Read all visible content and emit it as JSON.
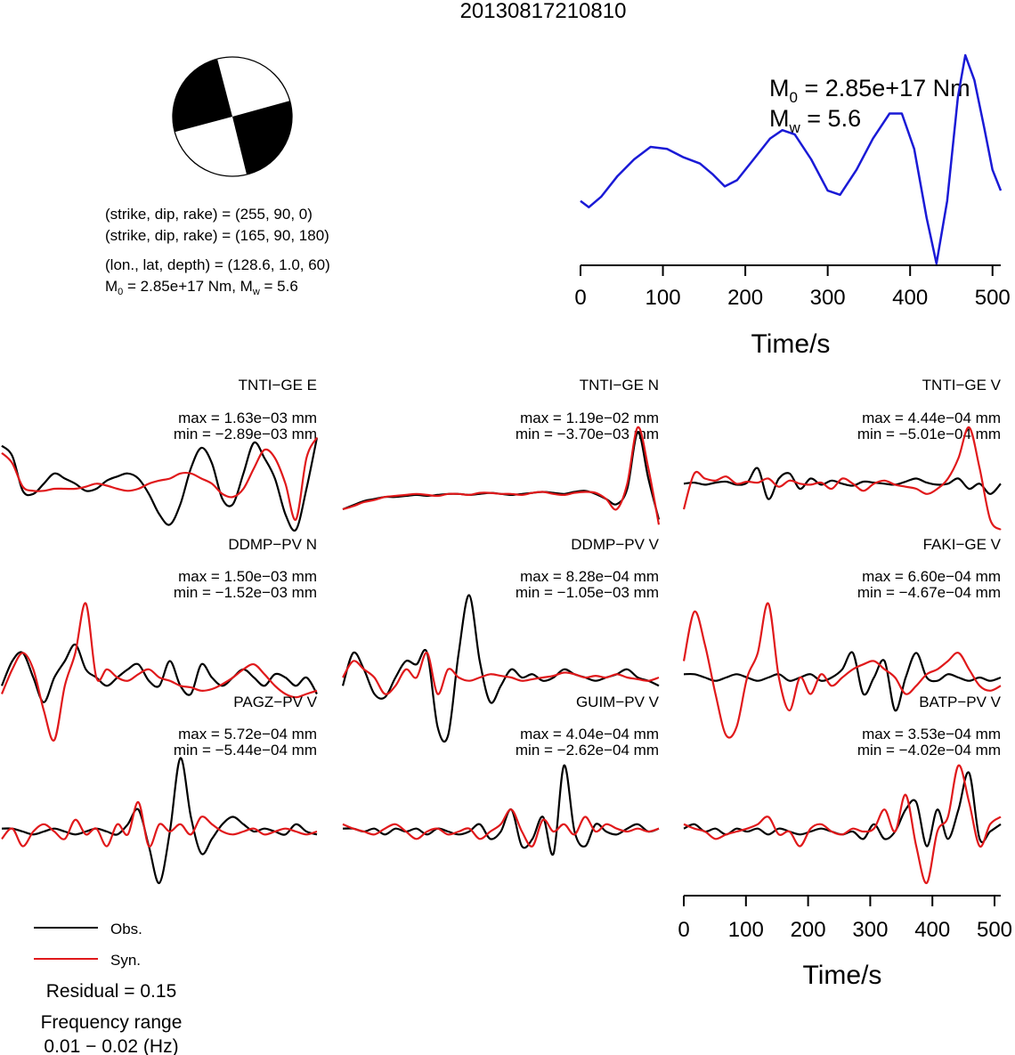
{
  "title": "20130817210810",
  "colors": {
    "observed": "#000000",
    "synthetic": "#e0191b",
    "stf": "#1a1ad6"
  },
  "beachball": {
    "info_lines": [
      "(strike, dip, rake) = (255, 90, 0)",
      "(strike, dip, rake) = (165, 90, 180)",
      "(lon., lat, depth) = (128.6, 1.0, 60)"
    ],
    "moment_line": {
      "m0_prefix": "M",
      "m0_sub": "0",
      "m0_text": " = 2.85e+17 Nm, M",
      "mw_sub": "w",
      "mw_text": " = 5.6"
    }
  },
  "stf_panel": {
    "m0": {
      "prefix": "M",
      "sub": "0",
      "text": " = 2.85e+17 Nm"
    },
    "mw": {
      "prefix": "M",
      "sub": "w",
      "text": " = 5.6"
    },
    "xlabel": "Time/s",
    "ticks": [
      "0",
      "100",
      "200",
      "300",
      "400",
      "500"
    ]
  },
  "waveform_axis": {
    "xlabel": "Time/s",
    "ticks": [
      "0",
      "100",
      "200",
      "300",
      "400",
      "500"
    ]
  },
  "legend": {
    "obs": "Obs.",
    "syn": "Syn."
  },
  "residual": "Residual = 0.15",
  "frequency_label": "Frequency range",
  "frequency_value": "0.01 − 0.02 (Hz)",
  "chart_data": [
    {
      "type": "line",
      "name": "source time function",
      "x": [
        0,
        10,
        25,
        45,
        65,
        85,
        105,
        125,
        145,
        160,
        175,
        190,
        210,
        230,
        245,
        260,
        280,
        300,
        315,
        335,
        355,
        375,
        390,
        405,
        420,
        432,
        445,
        458,
        467,
        478,
        490,
        500,
        510
      ],
      "y": [
        0.3,
        0.27,
        0.32,
        0.42,
        0.5,
        0.56,
        0.55,
        0.51,
        0.48,
        0.43,
        0.37,
        0.4,
        0.5,
        0.6,
        0.64,
        0.62,
        0.5,
        0.35,
        0.33,
        0.45,
        0.6,
        0.72,
        0.72,
        0.55,
        0.22,
        0.0,
        0.3,
        0.8,
        1.0,
        0.88,
        0.65,
        0.45,
        0.35
      ],
      "xlim": [
        0,
        510
      ]
    },
    {
      "type": "line",
      "name": "waveforms",
      "xlim": [
        0,
        510
      ],
      "stations": [
        {
          "label": "TNTI−GE E",
          "max": "max = 1.63e−03 mm",
          "min": "min = −2.89e−03 mm",
          "obs": [
            0.82,
            0.72,
            0.38,
            0.35,
            0.45,
            0.55,
            0.5,
            0.45,
            0.38,
            0.4,
            0.48,
            0.52,
            0.55,
            0.5,
            0.35,
            0.15,
            0.05,
            0.25,
            0.6,
            0.8,
            0.65,
            0.3,
            0.25,
            0.55,
            0.85,
            0.7,
            0.5,
            0.15,
            0.0,
            0.4,
            0.9
          ],
          "syn": [
            0.75,
            0.65,
            0.42,
            0.38,
            0.38,
            0.4,
            0.4,
            0.4,
            0.42,
            0.45,
            0.43,
            0.4,
            0.38,
            0.4,
            0.45,
            0.48,
            0.5,
            0.55,
            0.55,
            0.5,
            0.45,
            0.35,
            0.32,
            0.4,
            0.6,
            0.78,
            0.7,
            0.45,
            0.1,
            0.7,
            0.9
          ]
        },
        {
          "label": "TNTI−GE N",
          "max": "max = 1.19e−02 mm",
          "min": "min = −3.70e−03 mm",
          "obs": [
            0.2,
            0.24,
            0.28,
            0.3,
            0.32,
            0.32,
            0.33,
            0.34,
            0.33,
            0.34,
            0.35,
            0.35,
            0.34,
            0.35,
            0.36,
            0.35,
            0.34,
            0.35,
            0.36,
            0.37,
            0.36,
            0.35,
            0.37,
            0.38,
            0.35,
            0.3,
            0.25,
            0.4,
            0.95,
            0.5,
            0.1
          ],
          "syn": [
            0.2,
            0.23,
            0.27,
            0.29,
            0.32,
            0.33,
            0.34,
            0.35,
            0.34,
            0.33,
            0.35,
            0.35,
            0.34,
            0.36,
            0.36,
            0.35,
            0.35,
            0.34,
            0.36,
            0.37,
            0.35,
            0.34,
            0.36,
            0.37,
            0.36,
            0.3,
            0.2,
            0.45,
            1.0,
            0.6,
            0.05
          ]
        },
        {
          "label": "TNTI−GE V",
          "max": "max = 4.44e−04 mm",
          "min": "min = −5.01e−04 mm",
          "obs": [
            0.45,
            0.46,
            0.44,
            0.46,
            0.47,
            0.44,
            0.46,
            0.6,
            0.3,
            0.5,
            0.55,
            0.4,
            0.5,
            0.44,
            0.48,
            0.45,
            0.43,
            0.47,
            0.46,
            0.45,
            0.44,
            0.47,
            0.5,
            0.46,
            0.44,
            0.45,
            0.5,
            0.4,
            0.45,
            0.35,
            0.45
          ],
          "syn": [
            0.2,
            0.55,
            0.5,
            0.48,
            0.52,
            0.45,
            0.47,
            0.46,
            0.5,
            0.42,
            0.48,
            0.45,
            0.44,
            0.46,
            0.4,
            0.5,
            0.45,
            0.38,
            0.45,
            0.48,
            0.44,
            0.42,
            0.4,
            0.35,
            0.4,
            0.5,
            0.7,
            1.0,
            0.6,
            0.1,
            0.0
          ]
        },
        {
          "label": "DDMP−PV N",
          "max": "max = 1.50e−03 mm",
          "min": "min = −1.52e−03 mm",
          "obs": [
            0.35,
            0.5,
            0.55,
            0.4,
            0.25,
            0.4,
            0.5,
            0.6,
            0.45,
            0.4,
            0.35,
            0.4,
            0.45,
            0.48,
            0.38,
            0.35,
            0.5,
            0.35,
            0.3,
            0.48,
            0.4,
            0.35,
            0.4,
            0.45,
            0.4,
            0.35,
            0.42,
            0.4,
            0.35,
            0.4,
            0.3
          ],
          "syn": [
            0.3,
            0.45,
            0.55,
            0.45,
            0.2,
            0.02,
            0.35,
            0.55,
            0.85,
            0.4,
            0.45,
            0.4,
            0.38,
            0.42,
            0.45,
            0.4,
            0.38,
            0.35,
            0.34,
            0.32,
            0.33,
            0.36,
            0.4,
            0.45,
            0.48,
            0.42,
            0.35,
            0.3,
            0.28,
            0.3,
            0.32
          ]
        },
        {
          "label": "DDMP−PV V",
          "max": "max = 8.28e−04 mm",
          "min": "min = −1.05e−03 mm",
          "obs": [
            0.35,
            0.55,
            0.45,
            0.3,
            0.28,
            0.4,
            0.5,
            0.48,
            0.55,
            0.1,
            0.05,
            0.55,
            0.9,
            0.5,
            0.25,
            0.35,
            0.45,
            0.4,
            0.42,
            0.38,
            0.4,
            0.45,
            0.42,
            0.4,
            0.38,
            0.4,
            0.42,
            0.45,
            0.4,
            0.38,
            0.35
          ],
          "syn": [
            0.4,
            0.5,
            0.45,
            0.4,
            0.3,
            0.35,
            0.45,
            0.4,
            0.55,
            0.3,
            0.45,
            0.4,
            0.38,
            0.4,
            0.42,
            0.41,
            0.4,
            0.38,
            0.39,
            0.4,
            0.41,
            0.43,
            0.42,
            0.4,
            0.41,
            0.4,
            0.42,
            0.4,
            0.39,
            0.38,
            0.4
          ]
        },
        {
          "label": "FAKI−GE V",
          "max": "max = 6.60e−04 mm",
          "min": "min = −4.67e−04 mm",
          "obs": [
            0.42,
            0.42,
            0.4,
            0.38,
            0.4,
            0.42,
            0.4,
            0.38,
            0.4,
            0.42,
            0.38,
            0.4,
            0.42,
            0.38,
            0.4,
            0.45,
            0.55,
            0.3,
            0.4,
            0.5,
            0.2,
            0.4,
            0.55,
            0.4,
            0.38,
            0.42,
            0.4,
            0.38,
            0.4,
            0.38,
            0.4
          ],
          "syn": [
            0.5,
            0.8,
            0.6,
            0.3,
            0.05,
            0.1,
            0.4,
            0.55,
            0.85,
            0.4,
            0.2,
            0.4,
            0.3,
            0.42,
            0.35,
            0.4,
            0.45,
            0.48,
            0.5,
            0.45,
            0.4,
            0.3,
            0.35,
            0.42,
            0.45,
            0.5,
            0.55,
            0.45,
            0.35,
            0.32,
            0.35
          ]
        },
        {
          "label": "PAGZ−PV V",
          "max": "max = 5.72e−04 mm",
          "min": "min = −5.44e−04 mm",
          "obs": [
            0.42,
            0.42,
            0.4,
            0.38,
            0.4,
            0.42,
            0.4,
            0.38,
            0.4,
            0.42,
            0.4,
            0.38,
            0.45,
            0.55,
            0.3,
            0.05,
            0.4,
            0.9,
            0.5,
            0.25,
            0.35,
            0.45,
            0.5,
            0.45,
            0.4,
            0.42,
            0.4,
            0.38,
            0.45,
            0.4,
            0.38
          ],
          "syn": [
            0.35,
            0.42,
            0.3,
            0.4,
            0.45,
            0.4,
            0.35,
            0.48,
            0.38,
            0.42,
            0.3,
            0.45,
            0.38,
            0.6,
            0.3,
            0.45,
            0.4,
            0.45,
            0.38,
            0.5,
            0.45,
            0.4,
            0.38,
            0.4,
            0.42,
            0.38,
            0.4,
            0.42,
            0.4,
            0.38,
            0.4
          ]
        },
        {
          "label": "GUIM−PV V",
          "max": "max = 4.04e−04 mm",
          "min": "min = −2.62e−04 mm",
          "obs": [
            0.42,
            0.42,
            0.4,
            0.42,
            0.38,
            0.42,
            0.4,
            0.42,
            0.38,
            0.42,
            0.4,
            0.38,
            0.4,
            0.45,
            0.35,
            0.4,
            0.55,
            0.3,
            0.35,
            0.5,
            0.25,
            0.85,
            0.4,
            0.3,
            0.45,
            0.4,
            0.38,
            0.42,
            0.45,
            0.4,
            0.42
          ],
          "syn": [
            0.45,
            0.42,
            0.4,
            0.38,
            0.42,
            0.45,
            0.4,
            0.35,
            0.4,
            0.42,
            0.38,
            0.4,
            0.42,
            0.35,
            0.4,
            0.45,
            0.55,
            0.4,
            0.3,
            0.48,
            0.4,
            0.45,
            0.38,
            0.5,
            0.4,
            0.45,
            0.42,
            0.4,
            0.42,
            0.4,
            0.42
          ]
        },
        {
          "label": "BATP−PV V",
          "max": "max = 3.53e−04 mm",
          "min": "min = −4.02e−04 mm",
          "obs": [
            0.42,
            0.45,
            0.4,
            0.42,
            0.38,
            0.42,
            0.4,
            0.42,
            0.38,
            0.42,
            0.4,
            0.38,
            0.4,
            0.42,
            0.4,
            0.38,
            0.4,
            0.35,
            0.45,
            0.35,
            0.4,
            0.55,
            0.6,
            0.3,
            0.55,
            0.35,
            0.55,
            0.8,
            0.35,
            0.4,
            0.45
          ],
          "syn": [
            0.45,
            0.42,
            0.4,
            0.35,
            0.38,
            0.4,
            0.42,
            0.45,
            0.5,
            0.38,
            0.4,
            0.3,
            0.42,
            0.45,
            0.4,
            0.38,
            0.42,
            0.4,
            0.42,
            0.55,
            0.4,
            0.65,
            0.3,
            0.05,
            0.4,
            0.5,
            0.85,
            0.6,
            0.3,
            0.45,
            0.5
          ]
        }
      ]
    }
  ]
}
